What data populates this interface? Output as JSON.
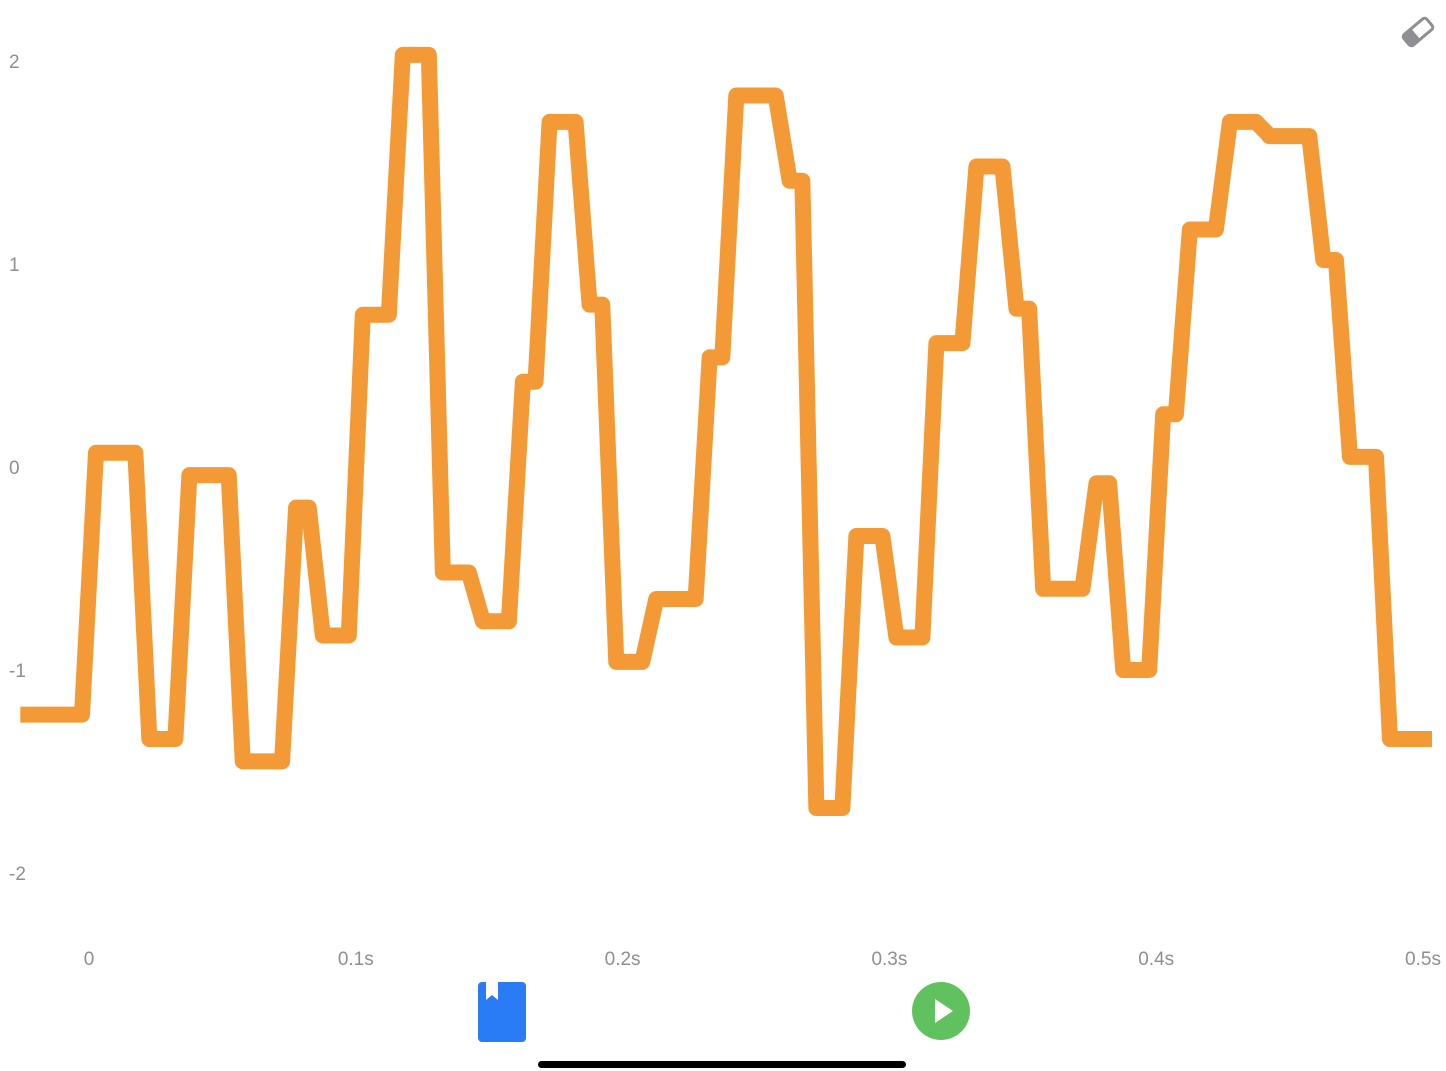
{
  "colors": {
    "waveform": "#F39A36",
    "axis_text": "#8E8E93",
    "bookmark": "#2A7BF6",
    "play": "#5FC25F",
    "eraser": "#8E8E93"
  },
  "toolbar": {
    "eraser_icon": "eraser-icon",
    "bookmark_icon": "bookmark-icon",
    "play_icon": "play-icon"
  },
  "chart_data": {
    "type": "line",
    "title": "",
    "xlabel": "",
    "ylabel": "",
    "y_ticks": [
      "2",
      "1",
      "0",
      "-1",
      "-2"
    ],
    "x_ticks": [
      "0",
      "0.1s",
      "0.2s",
      "0.3s",
      "0.4s",
      "0.5s"
    ],
    "ylim": [
      -2.3,
      2.1
    ],
    "xlim": [
      -0.025,
      0.505
    ],
    "grid": false,
    "series": [
      {
        "step": true,
        "x": [
          -0.025,
          0.0,
          0.02,
          0.035,
          0.055,
          0.075,
          0.085,
          0.1,
          0.115,
          0.13,
          0.145,
          0.16,
          0.17,
          0.185,
          0.195,
          0.21,
          0.23,
          0.24,
          0.26,
          0.27,
          0.285,
          0.3,
          0.315,
          0.33,
          0.345,
          0.355,
          0.375,
          0.385,
          0.4,
          0.41,
          0.425,
          0.44,
          0.445,
          0.46,
          0.47,
          0.485,
          0.5
        ],
        "y": [
          -1.22,
          0.07,
          -1.34,
          -0.04,
          -1.45,
          -0.2,
          -0.83,
          0.75,
          2.03,
          -0.52,
          -0.76,
          0.42,
          1.7,
          0.8,
          -0.96,
          -0.65,
          0.54,
          1.83,
          1.41,
          -1.68,
          -0.34,
          -0.84,
          0.61,
          1.48,
          0.78,
          -0.6,
          -0.08,
          -1.0,
          0.26,
          1.17,
          1.7,
          1.63,
          1.63,
          1.02,
          0.05,
          -1.34,
          -1.34
        ]
      }
    ]
  }
}
